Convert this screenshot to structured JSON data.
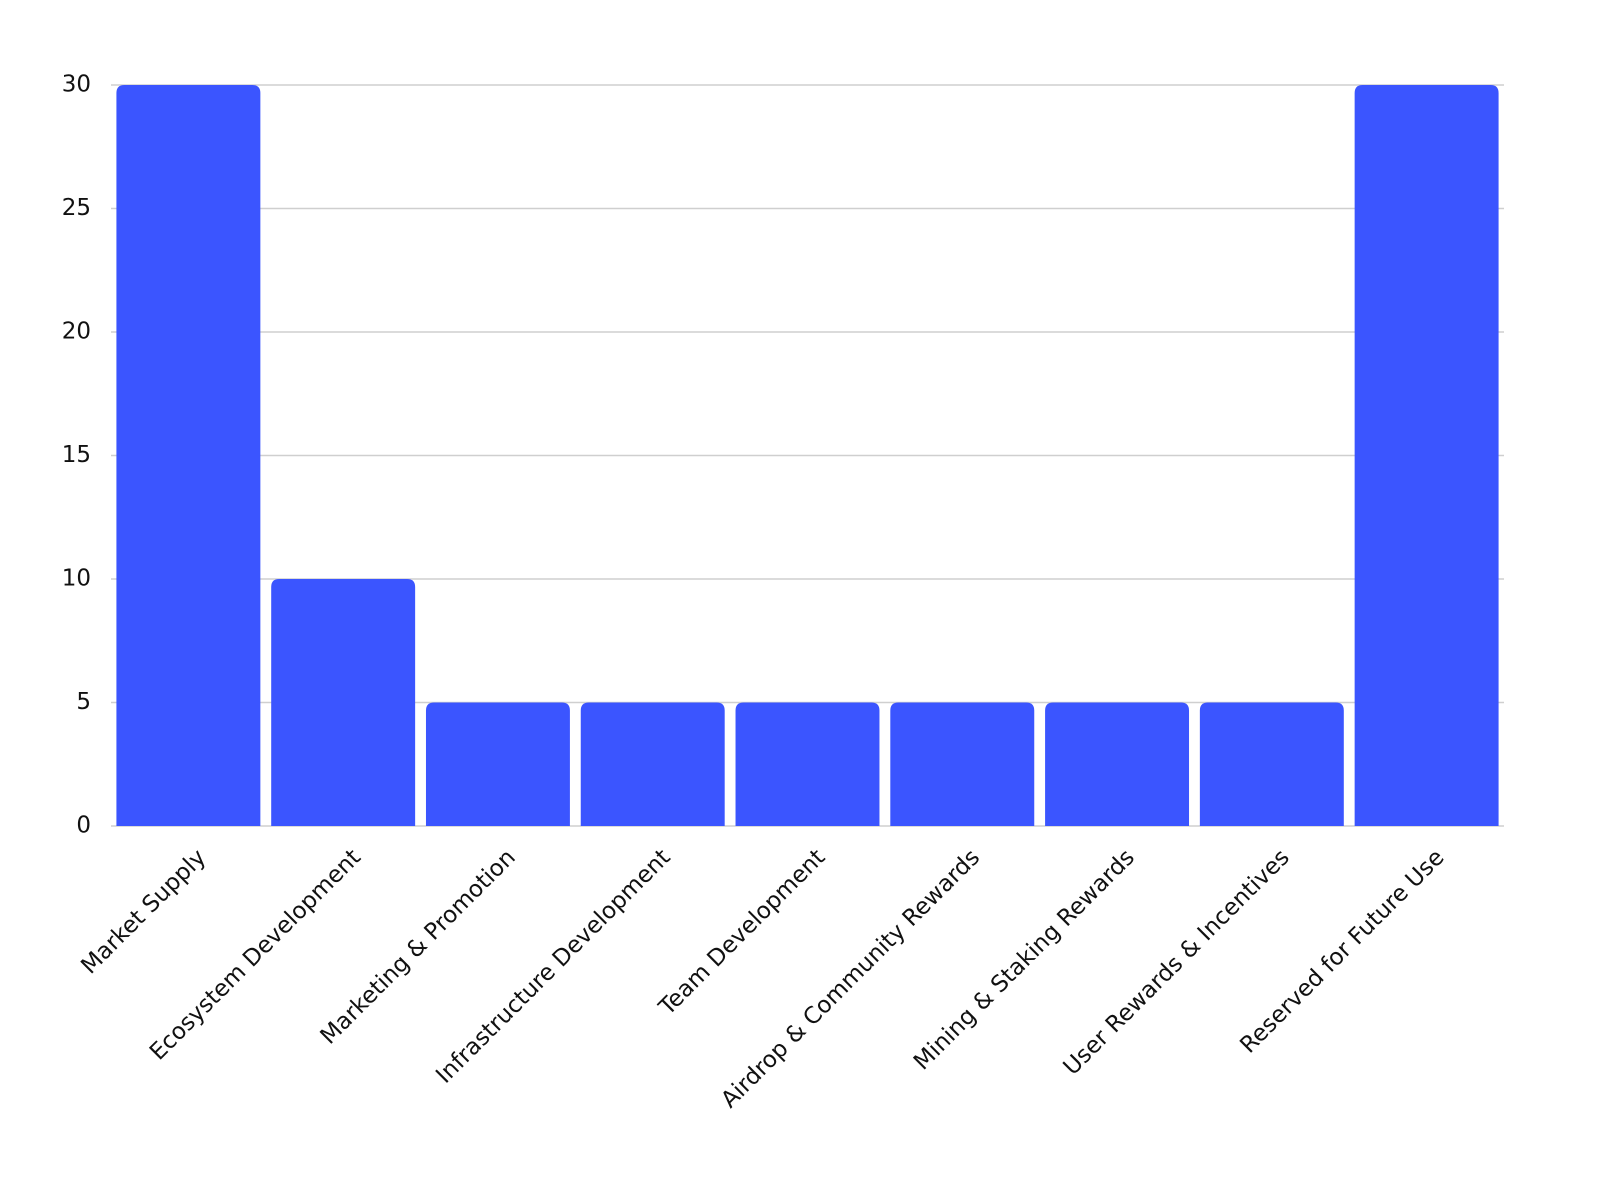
{
  "chart_data": {
    "type": "bar",
    "categories": [
      "Market Supply",
      "Ecosystem Development",
      "Marketing & Promotion",
      "Infrastructure Development",
      "Team Development",
      "Airdrop & Community Rewards",
      "Mining & Staking Rewards",
      "User Rewards & Incentives",
      "Reserved for Future Use"
    ],
    "values": [
      30,
      10,
      5,
      5,
      5,
      5,
      5,
      5,
      30
    ],
    "color": "#3b55ff",
    "ylim": [
      0,
      30
    ],
    "yticks": [
      0,
      5,
      10,
      15,
      20,
      25,
      30
    ],
    "grid": true
  }
}
